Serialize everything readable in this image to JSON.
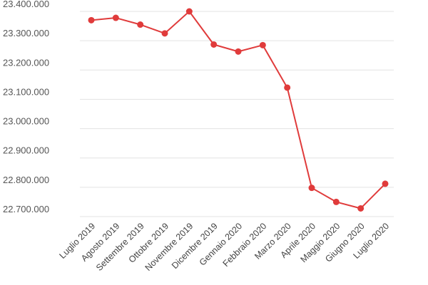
{
  "chart_data": {
    "type": "line",
    "title": "",
    "xlabel": "",
    "ylabel": "",
    "categories": [
      "Luglio 2019",
      "Agosto 2019",
      "Settembre 2019",
      "Ottobre 2019",
      "Novembre 2019",
      "Dicembre 2019",
      "Gennaio 2020",
      "Febbraio 2020",
      "Marzo 2020",
      "Aprile 2020",
      "Maggio 2020",
      "Giugno 2020",
      "Luglio 2020"
    ],
    "values": [
      23370000,
      23378000,
      23355000,
      23325000,
      23400000,
      23287000,
      23263000,
      23285000,
      23140000,
      22798000,
      22750000,
      22728000,
      22812000
    ],
    "yticks": [
      "22.700.000",
      "22.800.000",
      "22.900.000",
      "23.000.000",
      "23.100.000",
      "23.200.000",
      "23.300.000",
      "23.400.000"
    ],
    "ytick_values": [
      22700000,
      22800000,
      22900000,
      23000000,
      23100000,
      23200000,
      23300000,
      23400000
    ],
    "ylim": [
      22700000,
      23400000
    ],
    "grid": true,
    "legend": "none",
    "color": "#e03b3b"
  }
}
